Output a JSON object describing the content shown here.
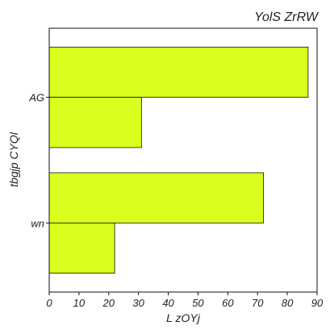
{
  "chart_data": {
    "type": "bar",
    "orientation": "horizontal",
    "title": "YolS ZrRW",
    "xlabel": "L zOYj",
    "ylabel": "tbgjp  CYQl",
    "categories": [
      "AG",
      "wn"
    ],
    "series": [
      {
        "values": [
          87,
          72
        ]
      },
      {
        "values": [
          31,
          22
        ]
      }
    ],
    "xlim": [
      0,
      90
    ],
    "xticks": [
      0,
      10,
      20,
      30,
      40,
      50,
      60,
      70,
      80,
      90
    ],
    "bar_color": "#d8ff1e",
    "edge_color": "#111111",
    "grid": false,
    "legend": "none"
  }
}
